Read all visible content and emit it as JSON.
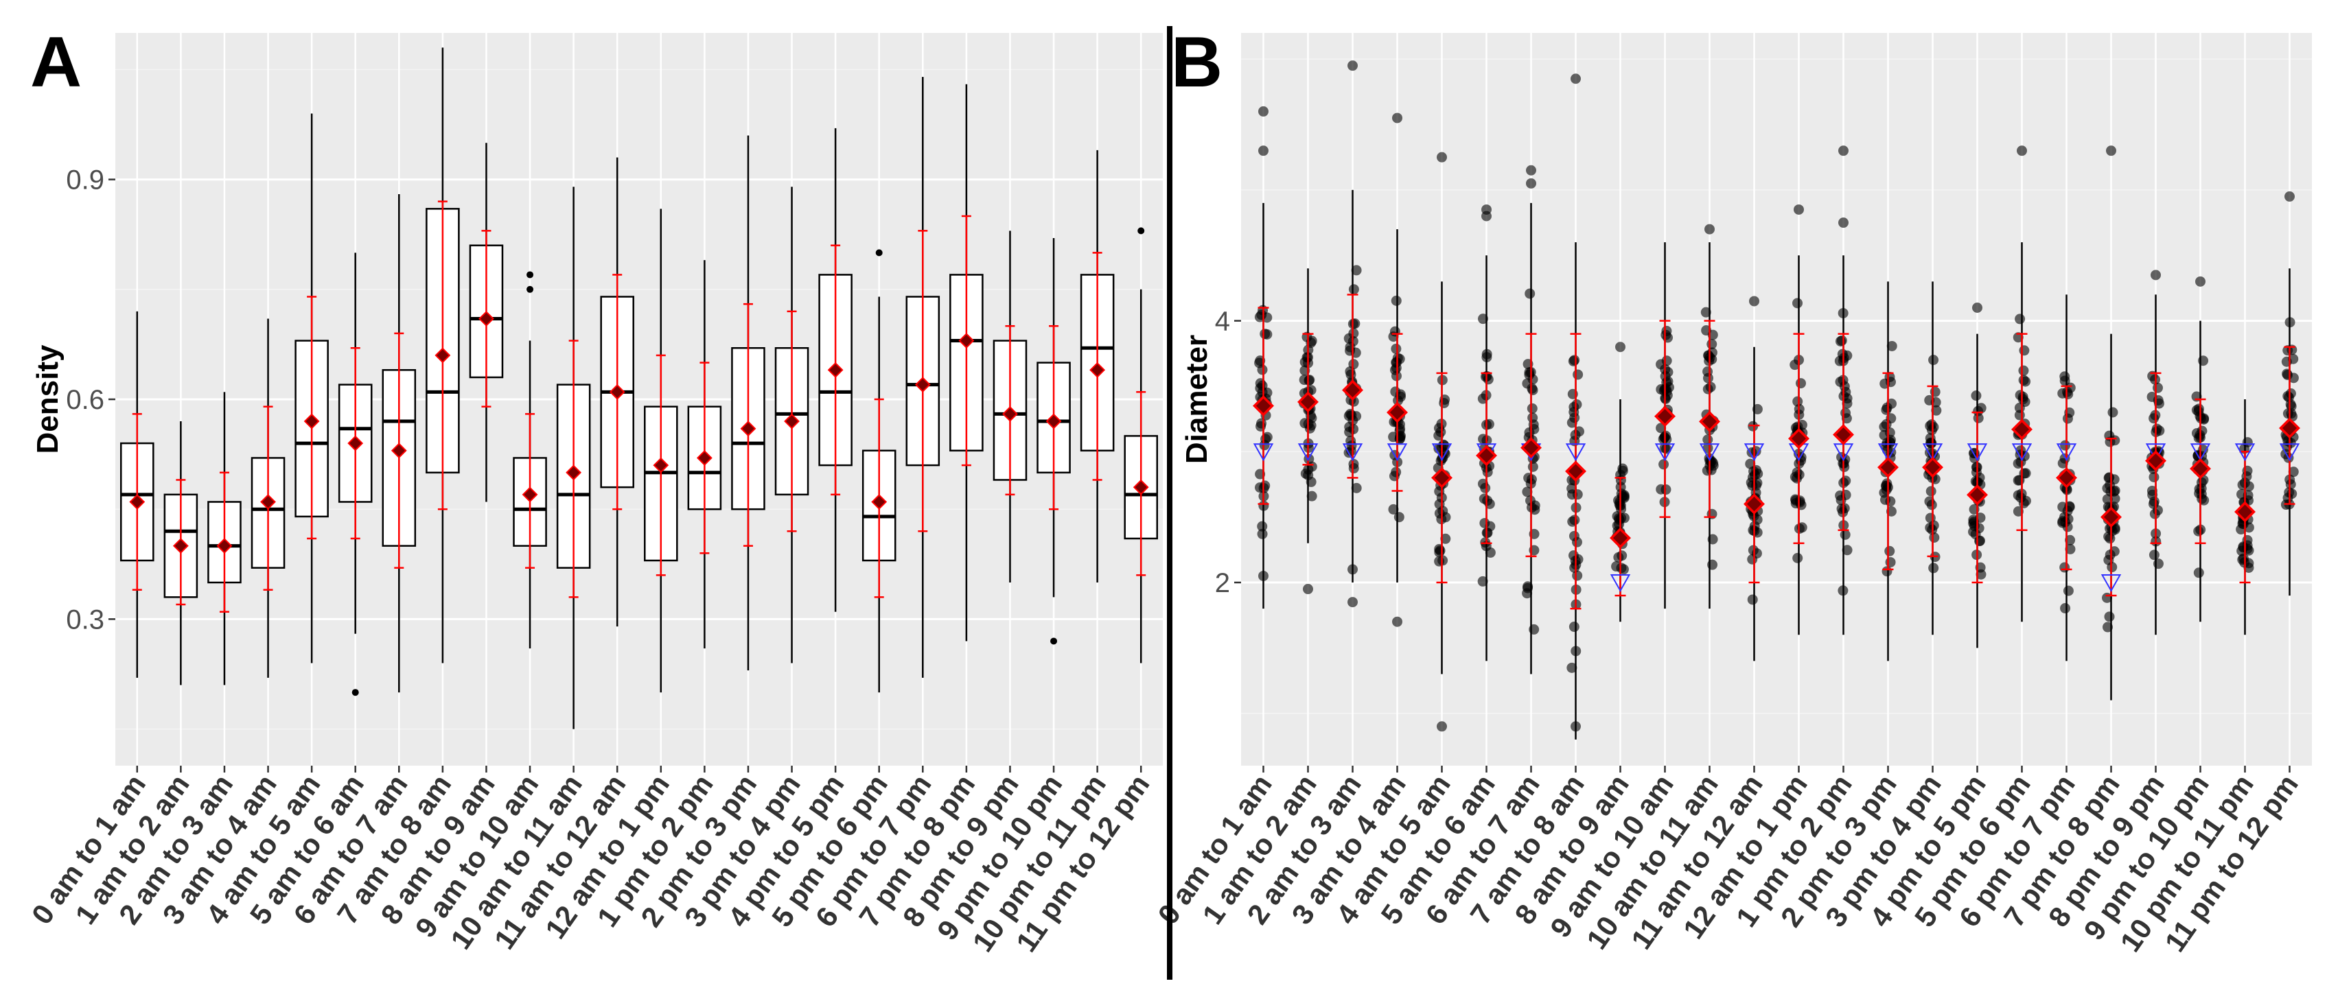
{
  "chart_data": [
    {
      "panel": "A",
      "type": "box",
      "ylabel": "Density",
      "ylim": [
        0.1,
        1.1
      ],
      "yticks": [
        0.3,
        0.6,
        0.9
      ],
      "grid": true,
      "categories": [
        "0 am to 1 am",
        "1 am to 2 am",
        "2 am to 3 am",
        "3 am to 4 am",
        "4 am to 5 am",
        "5 am to 6 am",
        "6 am to 7 am",
        "7 am to 8 am",
        "8 am to 9 am",
        "9 am to 10 am",
        "10 am to 11 am",
        "11 am to 12 am",
        "12 am to 1 pm",
        "1 pm to 2 pm",
        "2 pm to 3 pm",
        "3 pm to 4 pm",
        "4 pm to 5 pm",
        "5 pm to 6 pm",
        "6 pm to 7 pm",
        "7 pm to 8 pm",
        "8 pm to 9 pm",
        "9 pm to 10 pm",
        "10 pm to 11 pm",
        "11 pm to 12 pm"
      ],
      "boxes": [
        {
          "q1": 0.38,
          "median": 0.47,
          "q3": 0.54,
          "lower": 0.22,
          "upper": 0.72,
          "mean": 0.46,
          "sd_low": 0.34,
          "sd_high": 0.58,
          "outliers": []
        },
        {
          "q1": 0.33,
          "median": 0.42,
          "q3": 0.47,
          "lower": 0.21,
          "upper": 0.57,
          "mean": 0.4,
          "sd_low": 0.32,
          "sd_high": 0.49,
          "outliers": []
        },
        {
          "q1": 0.35,
          "median": 0.4,
          "q3": 0.46,
          "lower": 0.21,
          "upper": 0.61,
          "mean": 0.4,
          "sd_low": 0.31,
          "sd_high": 0.5,
          "outliers": []
        },
        {
          "q1": 0.37,
          "median": 0.45,
          "q3": 0.52,
          "lower": 0.22,
          "upper": 0.71,
          "mean": 0.46,
          "sd_low": 0.34,
          "sd_high": 0.59,
          "outliers": []
        },
        {
          "q1": 0.44,
          "median": 0.54,
          "q3": 0.68,
          "lower": 0.24,
          "upper": 0.99,
          "mean": 0.57,
          "sd_low": 0.41,
          "sd_high": 0.74,
          "outliers": []
        },
        {
          "q1": 0.46,
          "median": 0.56,
          "q3": 0.62,
          "lower": 0.28,
          "upper": 0.8,
          "mean": 0.54,
          "sd_low": 0.41,
          "sd_high": 0.67,
          "outliers": [
            0.2
          ]
        },
        {
          "q1": 0.4,
          "median": 0.57,
          "q3": 0.64,
          "lower": 0.2,
          "upper": 0.88,
          "mean": 0.53,
          "sd_low": 0.37,
          "sd_high": 0.69,
          "outliers": []
        },
        {
          "q1": 0.5,
          "median": 0.61,
          "q3": 0.86,
          "lower": 0.24,
          "upper": 1.08,
          "mean": 0.66,
          "sd_low": 0.45,
          "sd_high": 0.87,
          "outliers": []
        },
        {
          "q1": 0.63,
          "median": 0.71,
          "q3": 0.81,
          "lower": 0.46,
          "upper": 0.95,
          "mean": 0.71,
          "sd_low": 0.59,
          "sd_high": 0.83,
          "outliers": []
        },
        {
          "q1": 0.4,
          "median": 0.45,
          "q3": 0.52,
          "lower": 0.26,
          "upper": 0.68,
          "mean": 0.47,
          "sd_low": 0.37,
          "sd_high": 0.58,
          "outliers": [
            0.75,
            0.77
          ]
        },
        {
          "q1": 0.37,
          "median": 0.47,
          "q3": 0.62,
          "lower": 0.15,
          "upper": 0.89,
          "mean": 0.5,
          "sd_low": 0.33,
          "sd_high": 0.68,
          "outliers": []
        },
        {
          "q1": 0.48,
          "median": 0.61,
          "q3": 0.74,
          "lower": 0.29,
          "upper": 0.93,
          "mean": 0.61,
          "sd_low": 0.45,
          "sd_high": 0.77,
          "outliers": []
        },
        {
          "q1": 0.38,
          "median": 0.5,
          "q3": 0.59,
          "lower": 0.2,
          "upper": 0.86,
          "mean": 0.51,
          "sd_low": 0.36,
          "sd_high": 0.66,
          "outliers": []
        },
        {
          "q1": 0.45,
          "median": 0.5,
          "q3": 0.59,
          "lower": 0.26,
          "upper": 0.79,
          "mean": 0.52,
          "sd_low": 0.39,
          "sd_high": 0.65,
          "outliers": []
        },
        {
          "q1": 0.45,
          "median": 0.54,
          "q3": 0.67,
          "lower": 0.23,
          "upper": 0.96,
          "mean": 0.56,
          "sd_low": 0.4,
          "sd_high": 0.73,
          "outliers": []
        },
        {
          "q1": 0.47,
          "median": 0.58,
          "q3": 0.67,
          "lower": 0.24,
          "upper": 0.89,
          "mean": 0.57,
          "sd_low": 0.42,
          "sd_high": 0.72,
          "outliers": []
        },
        {
          "q1": 0.51,
          "median": 0.61,
          "q3": 0.77,
          "lower": 0.31,
          "upper": 0.97,
          "mean": 0.64,
          "sd_low": 0.47,
          "sd_high": 0.81,
          "outliers": []
        },
        {
          "q1": 0.38,
          "median": 0.44,
          "q3": 0.53,
          "lower": 0.2,
          "upper": 0.74,
          "mean": 0.46,
          "sd_low": 0.33,
          "sd_high": 0.6,
          "outliers": [
            0.8
          ]
        },
        {
          "q1": 0.51,
          "median": 0.62,
          "q3": 0.74,
          "lower": 0.22,
          "upper": 1.04,
          "mean": 0.62,
          "sd_low": 0.42,
          "sd_high": 0.83,
          "outliers": []
        },
        {
          "q1": 0.53,
          "median": 0.68,
          "q3": 0.77,
          "lower": 0.27,
          "upper": 1.03,
          "mean": 0.68,
          "sd_low": 0.51,
          "sd_high": 0.85,
          "outliers": []
        },
        {
          "q1": 0.49,
          "median": 0.58,
          "q3": 0.68,
          "lower": 0.35,
          "upper": 0.83,
          "mean": 0.58,
          "sd_low": 0.47,
          "sd_high": 0.7,
          "outliers": []
        },
        {
          "q1": 0.5,
          "median": 0.57,
          "q3": 0.65,
          "lower": 0.33,
          "upper": 0.82,
          "mean": 0.57,
          "sd_low": 0.45,
          "sd_high": 0.7,
          "outliers": [
            0.27
          ]
        },
        {
          "q1": 0.53,
          "median": 0.67,
          "q3": 0.77,
          "lower": 0.35,
          "upper": 0.94,
          "mean": 0.64,
          "sd_low": 0.49,
          "sd_high": 0.8,
          "outliers": []
        },
        {
          "q1": 0.41,
          "median": 0.47,
          "q3": 0.55,
          "lower": 0.24,
          "upper": 0.75,
          "mean": 0.48,
          "sd_low": 0.36,
          "sd_high": 0.61,
          "outliers": [
            0.83
          ]
        }
      ]
    },
    {
      "panel": "B",
      "type": "scatter",
      "ylabel": "Diameter",
      "ylim": [
        0.6,
        6.2
      ],
      "yticks": [
        2,
        4
      ],
      "grid": true,
      "categories": [
        "0 am to 1 am",
        "1 am to 2 am",
        "2 am to 3 am",
        "3 am to 4 am",
        "4 am to 5 am",
        "5 am to 6 am",
        "6 am to 7 am",
        "7 am to 8 am",
        "8 am to 9 am",
        "9 am to 10 am",
        "10 am to 11 am",
        "11 am to 12 am",
        "12 am to 1 pm",
        "1 pm to 2 pm",
        "2 pm to 3 pm",
        "3 pm to 4 pm",
        "4 pm to 5 pm",
        "5 pm to 6 pm",
        "6 pm to 7 pm",
        "7 pm to 8 pm",
        "8 pm to 9 pm",
        "9 pm to 10 pm",
        "10 pm to 11 pm",
        "11 pm to 12 pm"
      ],
      "groups": [
        {
          "min": 1.8,
          "max": 4.9,
          "mean": 3.35,
          "sd_low": 2.6,
          "sd_high": 4.1,
          "reference": 3.0,
          "high_points": [
            5.6,
            5.3
          ],
          "low_points": [
            2.05
          ]
        },
        {
          "min": 2.3,
          "max": 4.4,
          "mean": 3.38,
          "sd_low": 2.9,
          "sd_high": 3.9,
          "reference": 3.0,
          "high_points": [],
          "low_points": [
            1.95
          ]
        },
        {
          "min": 2.0,
          "max": 5.0,
          "mean": 3.47,
          "sd_low": 2.8,
          "sd_high": 4.2,
          "reference": 3.0,
          "high_points": [
            5.95
          ],
          "low_points": [
            1.85,
            2.1
          ]
        },
        {
          "min": 2.0,
          "max": 4.7,
          "mean": 3.3,
          "sd_low": 2.7,
          "sd_high": 3.9,
          "reference": 3.0,
          "high_points": [
            5.55
          ],
          "low_points": [
            1.7
          ]
        },
        {
          "min": 1.3,
          "max": 4.3,
          "mean": 2.8,
          "sd_low": 2.0,
          "sd_high": 3.6,
          "reference": 3.0,
          "high_points": [
            5.25
          ],
          "low_points": [
            0.9
          ]
        },
        {
          "min": 1.4,
          "max": 4.5,
          "mean": 2.97,
          "sd_low": 2.3,
          "sd_high": 3.6,
          "reference": 3.0,
          "high_points": [
            4.85,
            4.8
          ],
          "low_points": []
        },
        {
          "min": 1.3,
          "max": 4.9,
          "mean": 3.03,
          "sd_low": 2.2,
          "sd_high": 3.9,
          "reference": 3.0,
          "high_points": [
            5.15,
            5.05
          ],
          "low_points": []
        },
        {
          "min": 0.8,
          "max": 4.6,
          "mean": 2.85,
          "sd_low": 1.8,
          "sd_high": 3.9,
          "reference": 3.0,
          "high_points": [
            5.85
          ],
          "low_points": [
            0.9
          ]
        },
        {
          "min": 1.7,
          "max": 3.4,
          "mean": 2.34,
          "sd_low": 1.9,
          "sd_high": 2.8,
          "reference": 2.0,
          "high_points": [
            3.8
          ],
          "low_points": []
        },
        {
          "min": 1.8,
          "max": 4.6,
          "mean": 3.27,
          "sd_low": 2.5,
          "sd_high": 4.0,
          "reference": 3.0,
          "high_points": [],
          "low_points": []
        },
        {
          "min": 1.8,
          "max": 4.6,
          "mean": 3.23,
          "sd_low": 2.5,
          "sd_high": 4.0,
          "reference": 3.0,
          "high_points": [
            4.7
          ],
          "low_points": []
        },
        {
          "min": 1.4,
          "max": 3.8,
          "mean": 2.6,
          "sd_low": 2.0,
          "sd_high": 3.2,
          "reference": 3.0,
          "high_points": [
            4.15
          ],
          "low_points": []
        },
        {
          "min": 1.6,
          "max": 4.5,
          "mean": 3.1,
          "sd_low": 2.3,
          "sd_high": 3.9,
          "reference": 3.0,
          "high_points": [
            4.85
          ],
          "low_points": []
        },
        {
          "min": 1.6,
          "max": 4.5,
          "mean": 3.13,
          "sd_low": 2.4,
          "sd_high": 3.9,
          "reference": 3.0,
          "high_points": [
            5.3,
            4.75
          ],
          "low_points": []
        },
        {
          "min": 1.4,
          "max": 4.3,
          "mean": 2.88,
          "sd_low": 2.1,
          "sd_high": 3.6,
          "reference": 3.0,
          "high_points": [],
          "low_points": []
        },
        {
          "min": 1.6,
          "max": 4.3,
          "mean": 2.88,
          "sd_low": 2.2,
          "sd_high": 3.5,
          "reference": 3.0,
          "high_points": [],
          "low_points": []
        },
        {
          "min": 1.5,
          "max": 3.9,
          "mean": 2.67,
          "sd_low": 2.0,
          "sd_high": 3.3,
          "reference": 3.0,
          "high_points": [
            4.1
          ],
          "low_points": []
        },
        {
          "min": 1.7,
          "max": 4.6,
          "mean": 3.17,
          "sd_low": 2.4,
          "sd_high": 3.9,
          "reference": 3.0,
          "high_points": [
            5.3
          ],
          "low_points": []
        },
        {
          "min": 1.4,
          "max": 4.2,
          "mean": 2.8,
          "sd_low": 2.1,
          "sd_high": 3.5,
          "reference": 3.0,
          "high_points": [],
          "low_points": []
        },
        {
          "min": 1.1,
          "max": 3.9,
          "mean": 2.5,
          "sd_low": 1.9,
          "sd_high": 3.1,
          "reference": 2.0,
          "high_points": [
            5.3
          ],
          "low_points": []
        },
        {
          "min": 1.6,
          "max": 4.2,
          "mean": 2.93,
          "sd_low": 2.3,
          "sd_high": 3.6,
          "reference": 3.0,
          "high_points": [
            4.35
          ],
          "low_points": []
        },
        {
          "min": 1.7,
          "max": 4.0,
          "mean": 2.87,
          "sd_low": 2.3,
          "sd_high": 3.4,
          "reference": 3.0,
          "high_points": [
            4.3
          ],
          "low_points": []
        },
        {
          "min": 1.6,
          "max": 3.4,
          "mean": 2.54,
          "sd_low": 2.0,
          "sd_high": 3.0,
          "reference": 3.0,
          "high_points": [],
          "low_points": []
        },
        {
          "min": 1.9,
          "max": 4.4,
          "mean": 3.18,
          "sd_low": 2.6,
          "sd_high": 3.8,
          "reference": 3.0,
          "high_points": [
            4.95
          ],
          "low_points": []
        }
      ]
    }
  ],
  "colors": {
    "panel_bg": "#ebebeb",
    "grid_major": "#ffffff",
    "grid_minor": "#f4f4f4",
    "box_edge": "#000000",
    "box_fill": "#ffffff",
    "whisker": "#000000",
    "sd_bar": "#ff0000",
    "mean_marker": "#7a0000",
    "mean_marker_edge": "#ff0000",
    "point": "#000000",
    "reference_triangle": "#3333ff"
  }
}
